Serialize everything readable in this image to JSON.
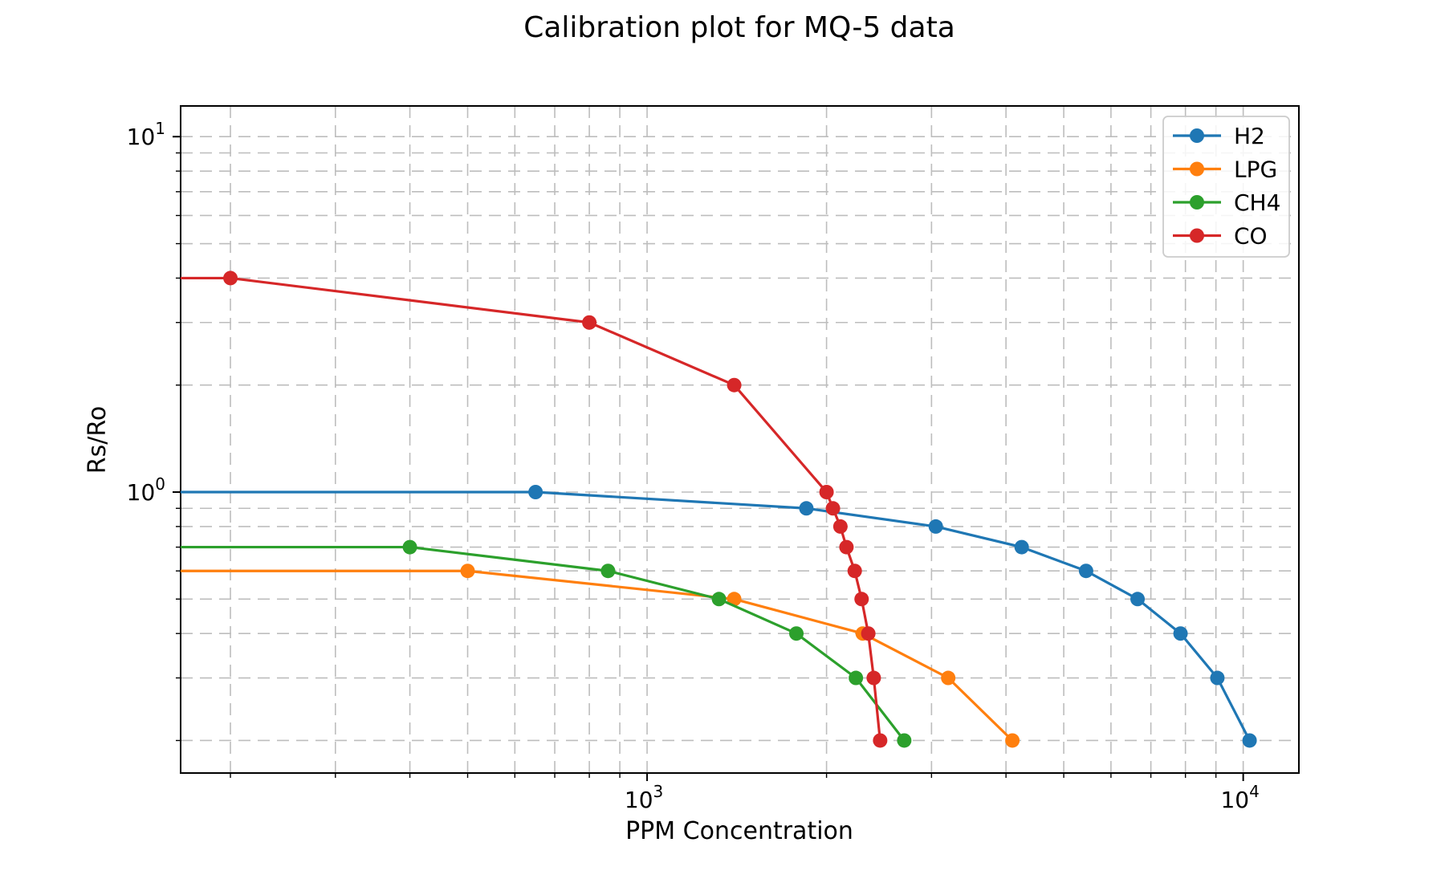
{
  "figure": {
    "title": "Calibration plot for MQ-5 data",
    "background": "#ffffff"
  },
  "chart_data": {
    "type": "line",
    "title": "Calibration plot for MQ-5 data",
    "xlabel": "PPM Concentration",
    "ylabel": "Rs/Ro",
    "xscale": "log",
    "yscale": "log",
    "xlim": [
      165,
      12400
    ],
    "ylim": [
      0.162,
      12.2
    ],
    "grid": {
      "which": "both",
      "linestyle": "dashed",
      "color": "#bdbdbd"
    },
    "x_major_ticks": [
      {
        "value": 1000,
        "base": "10",
        "exp": "3"
      },
      {
        "value": 10000,
        "base": "10",
        "exp": "4"
      }
    ],
    "y_major_ticks": [
      {
        "value": 1,
        "base": "10",
        "exp": "0"
      },
      {
        "value": 10,
        "base": "10",
        "exp": "1"
      }
    ],
    "legend": {
      "location": "upper right",
      "entries": [
        "H2",
        "LPG",
        "CH4",
        "CO"
      ]
    },
    "line_extends_to_left_axis": true,
    "series": [
      {
        "name": "H2",
        "color": "#1f77b4",
        "marker": "circle",
        "points": [
          [
            650,
            1.0
          ],
          [
            1850,
            0.9
          ],
          [
            3050,
            0.8
          ],
          [
            4250,
            0.7
          ],
          [
            5450,
            0.6
          ],
          [
            6650,
            0.5
          ],
          [
            7850,
            0.4
          ],
          [
            9050,
            0.3
          ],
          [
            10250,
            0.2
          ]
        ]
      },
      {
        "name": "LPG",
        "color": "#ff7f0e",
        "marker": "circle",
        "points": [
          [
            500,
            0.6
          ],
          [
            1400,
            0.5
          ],
          [
            2300,
            0.4
          ],
          [
            3200,
            0.3
          ],
          [
            4100,
            0.2
          ]
        ]
      },
      {
        "name": "CH4",
        "color": "#2ca02c",
        "marker": "circle",
        "points": [
          [
            400,
            0.7
          ],
          [
            860,
            0.6
          ],
          [
            1320,
            0.5
          ],
          [
            1780,
            0.4
          ],
          [
            2240,
            0.3
          ],
          [
            2700,
            0.2
          ]
        ]
      },
      {
        "name": "CO",
        "color": "#d62728",
        "marker": "circle",
        "points": [
          [
            200,
            4.0
          ],
          [
            800,
            3.0
          ],
          [
            1400,
            2.0
          ],
          [
            2000,
            1.0
          ],
          [
            2050,
            0.9
          ],
          [
            2110,
            0.8
          ],
          [
            2160,
            0.7
          ],
          [
            2230,
            0.6
          ],
          [
            2290,
            0.5
          ],
          [
            2350,
            0.4
          ],
          [
            2400,
            0.3
          ],
          [
            2460,
            0.2
          ]
        ]
      }
    ]
  }
}
